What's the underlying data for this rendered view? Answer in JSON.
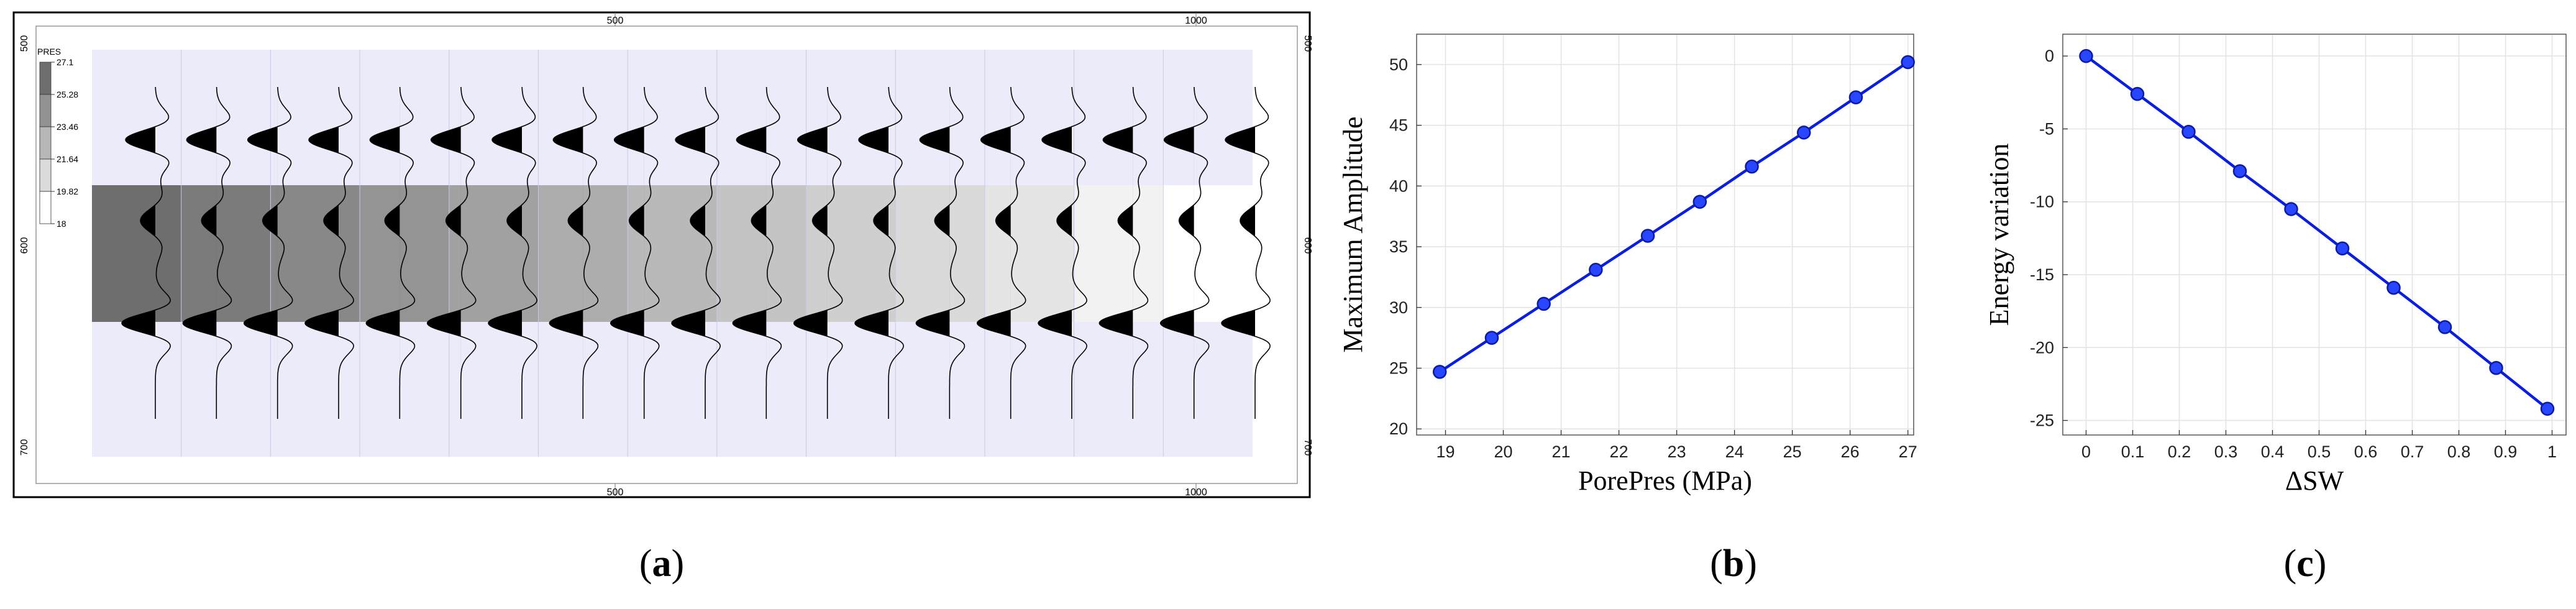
{
  "panels": {
    "a": {
      "caption_letter": "a",
      "colorbar": {
        "title": "PRES",
        "labels": [
          "27.1",
          "25.28",
          "23.46",
          "21.64",
          "19.82",
          "18"
        ]
      },
      "frame_ticks": {
        "top": [
          "500",
          "1000"
        ],
        "bottom": [
          "500",
          "1000"
        ],
        "left": [
          "500",
          "600",
          "700"
        ],
        "right": [
          "500",
          "600",
          "700"
        ]
      },
      "reservoir_gray_levels": [
        "#6e6e6e",
        "#7b7b7b",
        "#888888",
        "#949494",
        "#a1a1a1",
        "#adadad",
        "#b9b9b9",
        "#c4c4c4",
        "#cfcfcf",
        "#dadada",
        "#e5e5e5",
        "#f2f2f2",
        "#ffffff"
      ],
      "host_color": "#ebebfa"
    },
    "b": {
      "caption_letter": "b"
    },
    "c": {
      "caption_letter": "c"
    }
  },
  "chart_data": [
    {
      "type": "line",
      "xlabel": "PorePres (MPa)",
      "ylabel": "Maximum Amplitude",
      "xlim": [
        18.5,
        27.1
      ],
      "ylim": [
        19.5,
        52.5
      ],
      "xticks": [
        19,
        20,
        21,
        22,
        23,
        24,
        25,
        26,
        27
      ],
      "yticks": [
        20,
        25,
        30,
        35,
        40,
        45,
        50
      ],
      "grid": true,
      "color": "#0a1ee0",
      "x": [
        18.9,
        19.8,
        20.7,
        21.6,
        22.5,
        23.4,
        24.3,
        25.2,
        26.1,
        27.0
      ],
      "y": [
        24.7,
        27.5,
        30.3,
        33.1,
        35.9,
        38.7,
        41.6,
        44.4,
        47.3,
        50.2
      ]
    },
    {
      "type": "line",
      "xlabel": "ΔSW",
      "ylabel": "Energy variation",
      "xlim": [
        -0.05,
        1.03
      ],
      "ylim": [
        -26,
        1.5
      ],
      "xticks": [
        0,
        0.1,
        0.2,
        0.3,
        0.4,
        0.5,
        0.6,
        0.7,
        0.8,
        0.9,
        1
      ],
      "yticks": [
        0,
        -5,
        -10,
        -15,
        -20,
        -25
      ],
      "grid": true,
      "color": "#0a1ee0",
      "x": [
        0,
        0.11,
        0.22,
        0.33,
        0.44,
        0.55,
        0.66,
        0.77,
        0.88,
        0.99
      ],
      "y": [
        0,
        -2.6,
        -5.2,
        -7.9,
        -10.5,
        -13.2,
        -15.9,
        -18.6,
        -21.4,
        -24.2
      ]
    }
  ]
}
